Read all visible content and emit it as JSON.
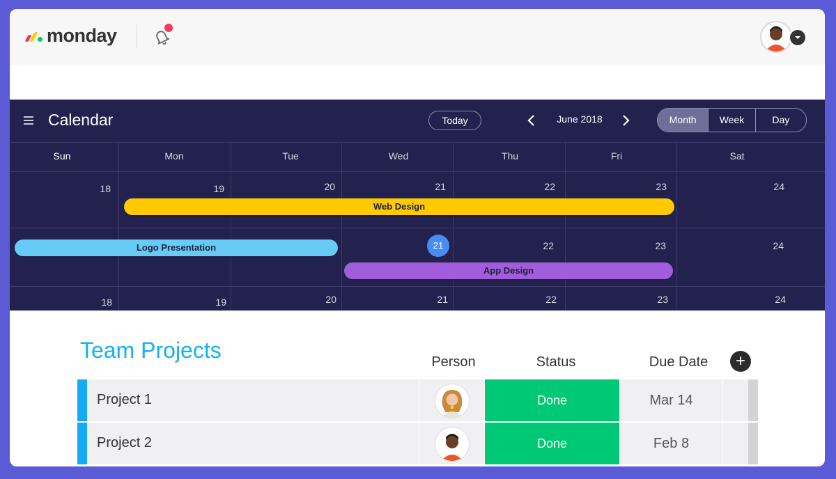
{
  "app": {
    "logo_text": "monday",
    "logo_colors": [
      "#f62b54",
      "#ffcc00",
      "#00ca72"
    ]
  },
  "calendar": {
    "title": "Calendar",
    "today_label": "Today",
    "month_label": "June 2018",
    "views": {
      "month": "Month",
      "week": "Week",
      "day": "Day",
      "selected": "Month"
    },
    "days_of_week": [
      "Sun",
      "Mon",
      "Tue",
      "Wed",
      "Thu",
      "Fri",
      "Sat"
    ],
    "weeks": [
      [
        "18",
        "19",
        "20",
        "21",
        "22",
        "23",
        "24"
      ],
      [
        "",
        "",
        "",
        "21",
        "22",
        "23",
        "24"
      ],
      [
        "18",
        "19",
        "20",
        "21",
        "22",
        "23",
        "24"
      ]
    ],
    "events": [
      {
        "label": "Web Design",
        "color": "#ffcb00"
      },
      {
        "label": "Logo Presentation",
        "color": "#66ccf5"
      },
      {
        "label": "App Design",
        "color": "#a25ddc"
      }
    ]
  },
  "board": {
    "title": "Team Projects",
    "columns": {
      "person": "Person",
      "status": "Status",
      "due": "Due Date"
    },
    "rows": [
      {
        "name": "Project 1",
        "status": "Done",
        "due": "Mar 14"
      },
      {
        "name": "Project 2",
        "status": "Done",
        "due": "Feb 8"
      }
    ],
    "status_color": "#00c875",
    "group_color": "#14aaf5"
  }
}
